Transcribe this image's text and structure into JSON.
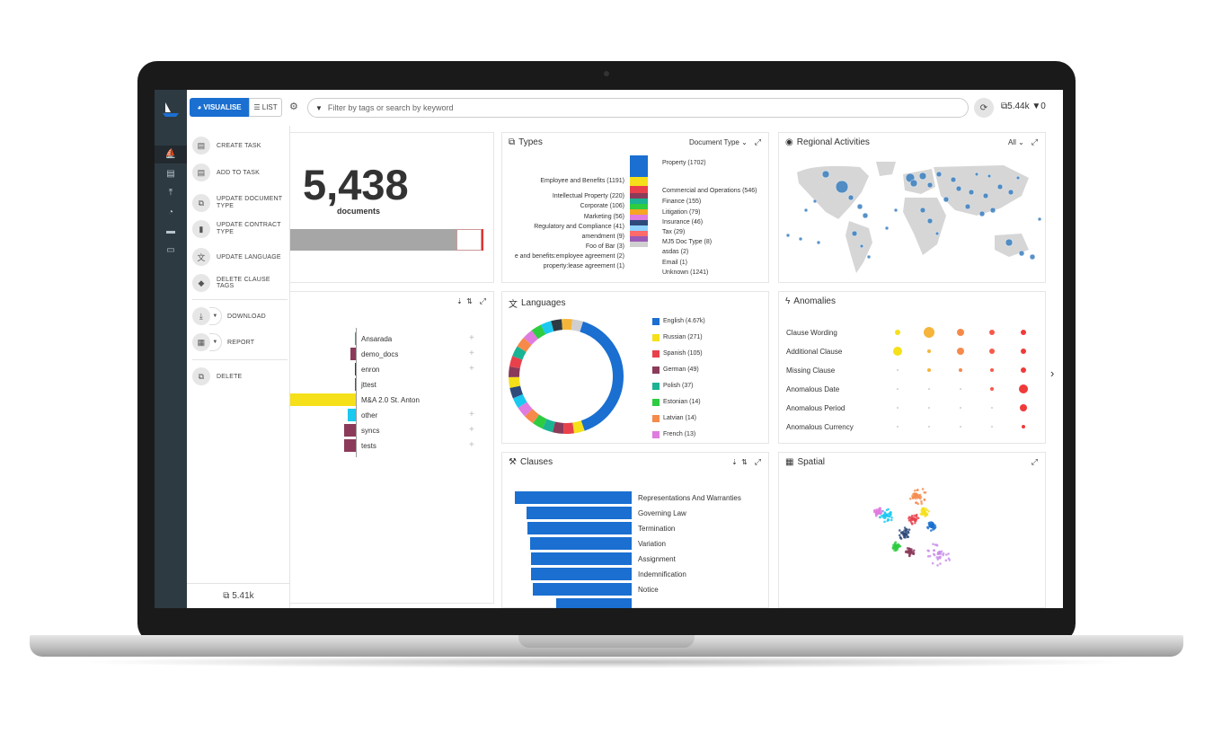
{
  "topbar": {
    "visualise_label": "VISUALISE",
    "list_label": "LIST",
    "search_placeholder": "Filter by tags or search by keyword",
    "doc_count": "5.44k",
    "filter_count": "0"
  },
  "menu": {
    "items": [
      {
        "label": "CREATE TASK"
      },
      {
        "label": "ADD TO TASK"
      },
      {
        "label": "UPDATE DOCUMENT TYPE"
      },
      {
        "label": "UPDATE CONTRACT TYPE"
      },
      {
        "label": "UPDATE LANGUAGE"
      },
      {
        "label": "DELETE CLAUSE TAGS"
      },
      {
        "label": "DOWNLOAD"
      },
      {
        "label": "REPORT"
      },
      {
        "label": "DELETE"
      }
    ],
    "footer_count": "5.41k"
  },
  "summary": {
    "count": "5,438",
    "unit": "documents"
  },
  "types": {
    "title": "Types",
    "selector": "Document Type",
    "left_labels": [
      "Employee and Benefits (1191)",
      "Intellectual Property (220)",
      "Corporate (106)",
      "Marketing (56)",
      "Regulatory and Compliance (41)",
      "amendment (9)",
      "Foo of Bar (3)",
      "e and benefits:employee agreement (2)",
      "property:lease agreement (1)"
    ],
    "right_labels": [
      "Property (1702)",
      "Commercial and Operations (546)",
      "Finance (155)",
      "Litigation (79)",
      "Insurance (46)",
      "Tax (29)",
      "MJ5 Doc Type (8)",
      "asdas (2)",
      "Email (1)",
      "Unknown (1241)"
    ],
    "stack_colors": [
      "#1a6fd1",
      "#f5e01a",
      "#e8414c",
      "#8b3a5a",
      "#1ab394",
      "#2ecc40",
      "#f5a623",
      "#e07be0",
      "#2e4a7a",
      "#8fd3ff",
      "#ff6b6b",
      "#9b59b6",
      "#cfcfcf"
    ]
  },
  "regional": {
    "title": "Regional Activities",
    "selector": "All"
  },
  "tags": {
    "items": [
      {
        "label": "Ansarada",
        "value": 1,
        "color": "#1ab394"
      },
      {
        "label": "demo_docs",
        "value": 8,
        "color": "#8b3a5a"
      },
      {
        "label": "enron",
        "value": 2,
        "color": "#2e3a42"
      },
      {
        "label": "jttest",
        "value": 1,
        "color": "#8b3a5a"
      },
      {
        "label": "M&A 2.0 St. Anton",
        "value": 100,
        "color": "#f5e01a"
      },
      {
        "label": "other",
        "value": 12,
        "color": "#1ac8f0"
      },
      {
        "label": "syncs",
        "value": 18,
        "color": "#8b3a5a"
      },
      {
        "label": "tests",
        "value": 18,
        "color": "#8b3a5a"
      }
    ]
  },
  "languages": {
    "title": "Languages",
    "items": [
      {
        "label": "English (4.67k)",
        "color": "#1a6fd1"
      },
      {
        "label": "Russian (271)",
        "color": "#f5e01a"
      },
      {
        "label": "Spanish (105)",
        "color": "#e8414c"
      },
      {
        "label": "German (49)",
        "color": "#8b3a5a"
      },
      {
        "label": "Polish (37)",
        "color": "#1ab394"
      },
      {
        "label": "Estonian (14)",
        "color": "#2ecc40"
      },
      {
        "label": "Latvian (14)",
        "color": "#f58a4b"
      },
      {
        "label": "French (13)",
        "color": "#e07be0"
      }
    ]
  },
  "anomalies": {
    "title": "Anomalies",
    "rows": [
      "Clause Wording",
      "Additional Clause",
      "Missing Clause",
      "Anomalous Date",
      "Anomalous Period",
      "Anomalous Currency"
    ],
    "columns": [
      "#f5e01a",
      "#f5b53a",
      "#f58a4b",
      "#f55a4b",
      "#f03a3a"
    ],
    "sizes": [
      [
        2,
        5,
        3,
        2,
        2
      ],
      [
        4,
        1,
        3,
        2,
        2
      ],
      [
        0,
        1,
        1,
        1,
        2
      ],
      [
        0,
        0,
        0,
        1,
        4
      ],
      [
        0,
        0,
        0,
        0,
        3
      ],
      [
        0,
        0,
        0,
        0,
        1
      ]
    ]
  },
  "clauses": {
    "title": "Clauses",
    "items": [
      {
        "label": "Representations And Warranties",
        "value": 100
      },
      {
        "label": "Governing Law",
        "value": 90
      },
      {
        "label": "Termination",
        "value": 89
      },
      {
        "label": "Variation",
        "value": 87
      },
      {
        "label": "Assignment",
        "value": 86
      },
      {
        "label": "Indemnification",
        "value": 86
      },
      {
        "label": "Notice",
        "value": 85
      }
    ]
  },
  "spatial": {
    "title": "Spatial"
  }
}
